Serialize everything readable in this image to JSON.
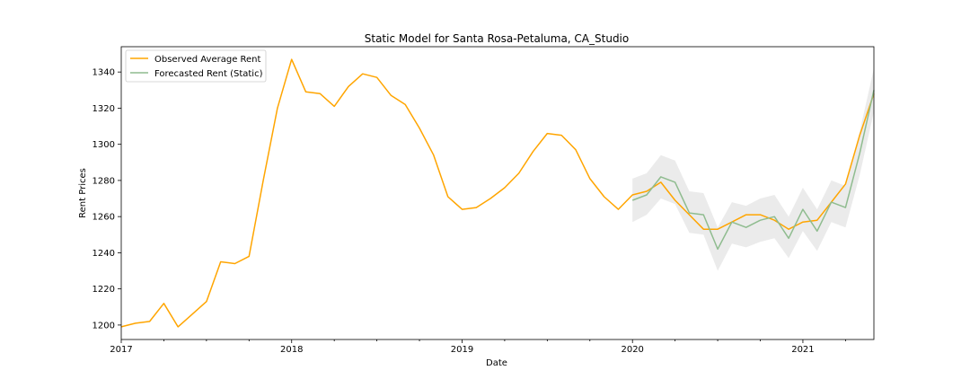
{
  "chart_data": {
    "type": "line",
    "title": "Static Model for Santa Rosa-Petaluma, CA_Studio",
    "xlabel": "Date",
    "ylabel": "Rent Prices",
    "xlim": [
      "2017-01",
      "2021-06"
    ],
    "ylim": [
      1192,
      1354
    ],
    "x_ticks": [
      "2017",
      "2018",
      "2019",
      "2020",
      "2021"
    ],
    "y_ticks": [
      1200,
      1220,
      1240,
      1260,
      1280,
      1300,
      1320,
      1340
    ],
    "grid": false,
    "legend_position": "top-left",
    "colors": {
      "observed": "#ffa500",
      "forecast": "#8fbc8f",
      "band": "#d3d3d3"
    },
    "series": [
      {
        "name": "Observed Average Rent",
        "x": [
          "2017-01",
          "2017-02",
          "2017-03",
          "2017-04",
          "2017-05",
          "2017-06",
          "2017-07",
          "2017-08",
          "2017-09",
          "2017-10",
          "2017-11",
          "2017-12",
          "2018-01",
          "2018-02",
          "2018-03",
          "2018-04",
          "2018-05",
          "2018-06",
          "2018-07",
          "2018-08",
          "2018-09",
          "2018-10",
          "2018-11",
          "2018-12",
          "2019-01",
          "2019-02",
          "2019-03",
          "2019-04",
          "2019-05",
          "2019-06",
          "2019-07",
          "2019-08",
          "2019-09",
          "2019-10",
          "2019-11",
          "2019-12",
          "2020-01",
          "2020-02",
          "2020-03",
          "2020-04",
          "2020-05",
          "2020-06",
          "2020-07",
          "2020-08",
          "2020-09",
          "2020-10",
          "2020-11",
          "2020-12",
          "2021-01",
          "2021-02",
          "2021-03",
          "2021-04",
          "2021-05",
          "2021-06"
        ],
        "values": [
          1199,
          1201,
          1202,
          1212,
          1199,
          1206,
          1213,
          1235,
          1234,
          1238,
          1280,
          1320,
          1347,
          1329,
          1328,
          1321,
          1332,
          1339,
          1337,
          1327,
          1322,
          1309,
          1294,
          1271,
          1264,
          1265,
          1270,
          1276,
          1284,
          1296,
          1306,
          1305,
          1297,
          1281,
          1271,
          1264,
          1272,
          1274,
          1279,
          1269,
          1261,
          1253,
          1253,
          1257,
          1261,
          1261,
          1258,
          1253,
          1257,
          1258,
          1268,
          1278,
          1305,
          1328
        ]
      },
      {
        "name": "Forecasted Rent (Static)",
        "x": [
          "2020-01",
          "2020-02",
          "2020-03",
          "2020-04",
          "2020-05",
          "2020-06",
          "2020-07",
          "2020-08",
          "2020-09",
          "2020-10",
          "2020-11",
          "2020-12",
          "2021-01",
          "2021-02",
          "2021-03",
          "2021-04",
          "2021-05",
          "2021-06"
        ],
        "values": [
          1269,
          1272,
          1282,
          1279,
          1262,
          1261,
          1242,
          1257,
          1254,
          1258,
          1260,
          1248,
          1264,
          1252,
          1268,
          1265,
          1295,
          1330
        ],
        "lower": [
          1257,
          1261,
          1270,
          1267,
          1251,
          1250,
          1230,
          1245,
          1243,
          1246,
          1248,
          1237,
          1252,
          1241,
          1257,
          1254,
          1283,
          1318
        ],
        "upper": [
          1281,
          1284,
          1294,
          1291,
          1274,
          1273,
          1254,
          1268,
          1266,
          1270,
          1272,
          1260,
          1276,
          1264,
          1280,
          1277,
          1307,
          1342
        ]
      }
    ]
  }
}
